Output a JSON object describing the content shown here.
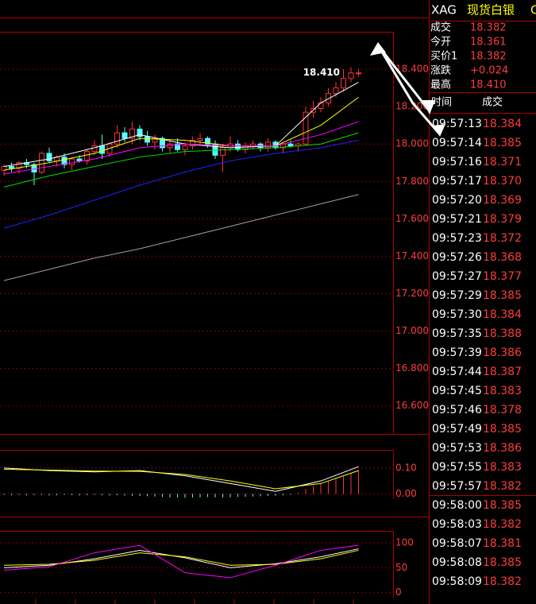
{
  "price_chart": {
    "type": "candlestick",
    "ylim": [
      16.45,
      18.6
    ],
    "yticks": [
      {
        "value": 18.4,
        "label": "18.400"
      },
      {
        "value": 18.2,
        "label": "18.200"
      },
      {
        "value": 18.0,
        "label": "18.000"
      },
      {
        "value": 17.8,
        "label": "17.800"
      },
      {
        "value": 17.6,
        "label": "17.600"
      },
      {
        "value": 17.4,
        "label": "17.400"
      },
      {
        "value": 17.2,
        "label": "17.200"
      },
      {
        "value": 17.0,
        "label": "17.000"
      },
      {
        "value": 16.8,
        "label": "16.800"
      },
      {
        "value": 16.6,
        "label": "16.600"
      }
    ],
    "candles": [
      [
        17.86,
        17.89,
        17.83,
        17.88
      ],
      [
        17.88,
        17.9,
        17.85,
        17.87
      ],
      [
        17.87,
        17.91,
        17.84,
        17.9
      ],
      [
        17.9,
        17.92,
        17.87,
        17.89
      ],
      [
        17.89,
        17.9,
        17.78,
        17.85
      ],
      [
        17.85,
        17.96,
        17.84,
        17.95
      ],
      [
        17.95,
        17.98,
        17.9,
        17.91
      ],
      [
        17.91,
        17.94,
        17.88,
        17.93
      ],
      [
        17.93,
        17.95,
        17.87,
        17.89
      ],
      [
        17.89,
        17.93,
        17.86,
        17.92
      ],
      [
        17.92,
        17.94,
        17.9,
        17.91
      ],
      [
        17.91,
        17.97,
        17.89,
        17.96
      ],
      [
        17.96,
        18.02,
        17.94,
        17.99
      ],
      [
        17.99,
        18.05,
        17.92,
        17.95
      ],
      [
        17.95,
        18.01,
        17.93,
        18.0
      ],
      [
        18.0,
        18.1,
        17.98,
        18.06
      ],
      [
        18.06,
        18.09,
        18.01,
        18.03
      ],
      [
        18.03,
        18.12,
        18.0,
        18.08
      ],
      [
        18.08,
        18.1,
        18.02,
        18.04
      ],
      [
        18.04,
        18.07,
        17.99,
        18.01
      ],
      [
        18.01,
        18.05,
        17.97,
        18.03
      ],
      [
        18.03,
        18.04,
        17.96,
        17.98
      ],
      [
        17.98,
        18.02,
        17.95,
        18.0
      ],
      [
        18.0,
        18.03,
        17.96,
        17.97
      ],
      [
        17.97,
        18.01,
        17.94,
        17.99
      ],
      [
        17.99,
        18.04,
        17.97,
        18.02
      ],
      [
        18.02,
        18.06,
        18.0,
        18.03
      ],
      [
        18.03,
        18.04,
        17.98,
        18.0
      ],
      [
        18.0,
        18.02,
        17.92,
        17.94
      ],
      [
        17.94,
        18.0,
        17.85,
        17.98
      ],
      [
        17.98,
        18.04,
        17.96,
        18.0
      ],
      [
        18.0,
        18.02,
        17.96,
        17.97
      ],
      [
        17.97,
        18.01,
        17.95,
        17.99
      ],
      [
        17.99,
        18.02,
        17.97,
        18.0
      ],
      [
        18.0,
        18.01,
        17.96,
        17.98
      ],
      [
        17.98,
        18.03,
        17.96,
        18.01
      ],
      [
        18.01,
        18.02,
        17.97,
        17.98
      ],
      [
        17.98,
        18.01,
        17.95,
        18.0
      ],
      [
        18.0,
        18.02,
        17.98,
        17.99
      ],
      [
        17.99,
        18.01,
        17.96,
        18.0
      ],
      [
        18.0,
        18.2,
        17.99,
        18.17
      ],
      [
        18.17,
        18.23,
        18.14,
        18.19
      ],
      [
        18.19,
        18.25,
        18.17,
        18.22
      ],
      [
        18.22,
        18.3,
        18.2,
        18.27
      ],
      [
        18.27,
        18.33,
        18.25,
        18.3
      ],
      [
        18.3,
        18.4,
        18.28,
        18.35
      ],
      [
        18.35,
        18.41,
        18.33,
        18.38
      ],
      [
        18.38,
        18.4,
        18.36,
        18.38
      ]
    ],
    "ma_x": [
      0,
      6,
      12,
      18,
      24,
      30,
      36,
      42,
      47
    ],
    "ma_series": [
      {
        "color": "#ffffff",
        "values": [
          17.88,
          17.92,
          17.98,
          18.05,
          18.0,
          17.98,
          17.99,
          18.22,
          18.33
        ]
      },
      {
        "color": "#ffff00",
        "values": [
          17.86,
          17.9,
          17.95,
          18.03,
          18.02,
          17.99,
          17.99,
          18.1,
          18.25
        ]
      },
      {
        "color": "#ff00ff",
        "values": [
          17.84,
          17.88,
          17.92,
          17.98,
          18.0,
          17.99,
          17.99,
          18.05,
          18.12
        ]
      },
      {
        "color": "#00e000",
        "values": [
          17.77,
          17.83,
          17.88,
          17.93,
          17.96,
          17.97,
          17.98,
          18.0,
          18.06
        ]
      },
      {
        "color": "#2020ff",
        "values": [
          17.55,
          17.62,
          17.7,
          17.78,
          17.85,
          17.91,
          17.95,
          17.98,
          18.02
        ]
      },
      {
        "color": "#a0a0a0",
        "values": [
          17.27,
          17.33,
          17.39,
          17.44,
          17.5,
          17.56,
          17.62,
          17.68,
          17.73
        ]
      }
    ],
    "last_label": {
      "value": 18.41,
      "label": "18.410"
    }
  },
  "macd": {
    "ylim": [
      -0.02,
      0.17
    ],
    "yticks": [
      {
        "value": 0.1,
        "label": "0.10"
      },
      {
        "value": 0,
        "label": "0.00"
      }
    ],
    "histogram": [
      -0.004,
      -0.005,
      -0.004,
      -0.006,
      -0.005,
      -0.004,
      -0.006,
      -0.005,
      -0.004,
      -0.005,
      -0.006,
      -0.005,
      -0.004,
      -0.005,
      -0.006,
      -0.005,
      -0.006,
      -0.007,
      -0.008,
      -0.009,
      -0.01,
      -0.012,
      -0.013,
      -0.014,
      -0.015,
      -0.014,
      -0.013,
      -0.012,
      -0.013,
      -0.014,
      -0.013,
      -0.012,
      -0.011,
      -0.01,
      -0.009,
      -0.008,
      -0.007,
      -0.006,
      -0.004,
      0.005,
      0.02,
      0.03,
      0.04,
      0.05,
      0.06,
      0.07,
      0.08,
      0.09
    ],
    "line_x": [
      0,
      6,
      12,
      18,
      24,
      30,
      36,
      42,
      47
    ],
    "lines": [
      {
        "color": "#ffffff",
        "values": [
          0.1,
          0.09,
          0.085,
          0.09,
          0.07,
          0.04,
          0.01,
          0.05,
          0.105
        ]
      },
      {
        "color": "#ffff00",
        "values": [
          0.095,
          0.092,
          0.088,
          0.087,
          0.075,
          0.05,
          0.02,
          0.04,
          0.09
        ]
      }
    ]
  },
  "kdj": {
    "ylim": [
      -10,
      124
    ],
    "yticks": [
      100,
      50,
      0
    ],
    "line_x": [
      0,
      6,
      12,
      18,
      24,
      30,
      36,
      42,
      47
    ],
    "lines": [
      {
        "color": "#ffffff",
        "values": [
          50,
          55,
          68,
          85,
          70,
          50,
          58,
          72,
          88
        ]
      },
      {
        "color": "#ffff00",
        "values": [
          55,
          57,
          65,
          80,
          72,
          55,
          57,
          68,
          85
        ]
      },
      {
        "color": "#ff00ff",
        "values": [
          45,
          52,
          80,
          95,
          40,
          30,
          55,
          85,
          95
        ]
      }
    ]
  },
  "quote": {
    "symbol": "XAG",
    "name": "现货白银",
    "code": "C",
    "rows": [
      {
        "label": "成交",
        "value": "18.382"
      },
      {
        "label": "今开",
        "value": "18.361"
      },
      {
        "label": "买价1",
        "value": "18.382"
      },
      {
        "label": "涨跌",
        "value": "+0.024"
      },
      {
        "label": "最高",
        "value": "18.410"
      }
    ]
  },
  "ticks": {
    "headers": [
      "时间",
      "成交"
    ],
    "rows": [
      [
        "09:57:13",
        "18.384"
      ],
      [
        "09:57:14",
        "18.385"
      ],
      [
        "09:57:16",
        "18.371"
      ],
      [
        "09:57:17",
        "18.370"
      ],
      [
        "09:57:20",
        "18.369"
      ],
      [
        "09:57:21",
        "18.379"
      ],
      [
        "09:57:23",
        "18.372"
      ],
      [
        "09:57:26",
        "18.368"
      ],
      [
        "09:57:27",
        "18.377"
      ],
      [
        "09:57:29",
        "18.385"
      ],
      [
        "09:57:30",
        "18.384"
      ],
      [
        "09:57:35",
        "18.388"
      ],
      [
        "09:57:39",
        "18.386"
      ],
      [
        "09:57:44",
        "18.387"
      ],
      [
        "09:57:45",
        "18.383"
      ],
      [
        "09:57:46",
        "18.378"
      ],
      [
        "09:57:49",
        "18.385"
      ],
      [
        "09:57:53",
        "18.386"
      ],
      [
        "09:57:55",
        "18.383"
      ],
      [
        "09:57:57",
        "18.382"
      ],
      [
        "09:58:00",
        "18.385"
      ],
      [
        "09:58:03",
        "18.382"
      ],
      [
        "09:58:07",
        "18.381"
      ],
      [
        "09:58:08",
        "18.385"
      ],
      [
        "09:58:09",
        "18.382"
      ]
    ]
  }
}
